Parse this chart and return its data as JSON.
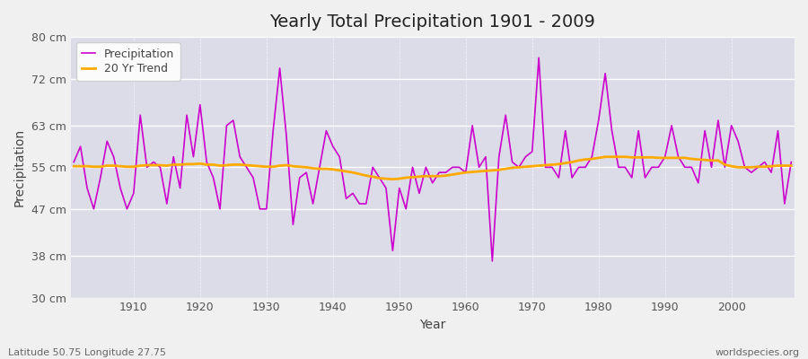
{
  "title": "Yearly Total Precipitation 1901 - 2009",
  "xlabel": "Year",
  "ylabel": "Precipitation",
  "bottom_left_label": "Latitude 50.75 Longitude 27.75",
  "bottom_right_label": "worldspecies.org",
  "ylim": [
    30,
    80
  ],
  "yticks": [
    30,
    38,
    47,
    55,
    63,
    72,
    80
  ],
  "ytick_labels": [
    "30 cm",
    "38 cm",
    "47 cm",
    "55 cm",
    "63 cm",
    "72 cm",
    "80 cm"
  ],
  "bg_color": "#f0f0f0",
  "plot_bg_color": "#dcdce8",
  "precip_color": "#cc00cc",
  "trend_color": "#ffaa00",
  "years": [
    1901,
    1902,
    1903,
    1904,
    1905,
    1906,
    1907,
    1908,
    1909,
    1910,
    1911,
    1912,
    1913,
    1914,
    1915,
    1916,
    1917,
    1918,
    1919,
    1920,
    1921,
    1922,
    1923,
    1924,
    1925,
    1926,
    1927,
    1928,
    1929,
    1930,
    1931,
    1932,
    1933,
    1934,
    1935,
    1936,
    1937,
    1938,
    1939,
    1940,
    1941,
    1942,
    1943,
    1944,
    1945,
    1946,
    1947,
    1948,
    1949,
    1950,
    1951,
    1952,
    1953,
    1954,
    1955,
    1956,
    1957,
    1958,
    1959,
    1960,
    1961,
    1962,
    1963,
    1964,
    1965,
    1966,
    1967,
    1968,
    1969,
    1970,
    1971,
    1972,
    1973,
    1974,
    1975,
    1976,
    1977,
    1978,
    1979,
    1980,
    1981,
    1982,
    1983,
    1984,
    1985,
    1986,
    1987,
    1988,
    1989,
    1990,
    1991,
    1992,
    1993,
    1994,
    1995,
    1996,
    1997,
    1998,
    1999,
    2000,
    2001,
    2002,
    2003,
    2004,
    2005,
    2006,
    2007,
    2008,
    2009
  ],
  "precip": [
    56,
    59,
    51,
    47,
    53,
    60,
    57,
    51,
    47,
    50,
    65,
    55,
    56,
    55,
    48,
    57,
    51,
    65,
    57,
    67,
    56,
    53,
    47,
    63,
    64,
    57,
    55,
    53,
    47,
    47,
    62,
    74,
    61,
    44,
    53,
    54,
    48,
    55,
    62,
    59,
    57,
    49,
    50,
    48,
    48,
    55,
    53,
    51,
    39,
    51,
    47,
    55,
    50,
    55,
    52,
    54,
    54,
    55,
    55,
    54,
    63,
    55,
    57,
    37,
    57,
    65,
    56,
    55,
    57,
    58,
    76,
    55,
    55,
    53,
    62,
    53,
    55,
    55,
    57,
    64,
    73,
    62,
    55,
    55,
    53,
    62,
    53,
    55,
    55,
    57,
    63,
    57,
    55,
    55,
    52,
    62,
    55,
    64,
    55,
    63,
    60,
    55,
    54,
    55,
    56,
    54,
    62,
    48,
    56
  ],
  "trend": [
    55.2,
    55.2,
    55.2,
    55.1,
    55.1,
    55.3,
    55.3,
    55.2,
    55.1,
    55.1,
    55.3,
    55.4,
    55.4,
    55.4,
    55.3,
    55.5,
    55.5,
    55.6,
    55.6,
    55.7,
    55.5,
    55.5,
    55.3,
    55.4,
    55.5,
    55.5,
    55.4,
    55.3,
    55.2,
    55.1,
    55.1,
    55.3,
    55.4,
    55.2,
    55.1,
    55.0,
    54.8,
    54.7,
    54.7,
    54.6,
    54.4,
    54.2,
    54.0,
    53.7,
    53.4,
    53.2,
    52.9,
    52.8,
    52.7,
    52.8,
    53.0,
    53.1,
    53.2,
    53.3,
    53.3,
    53.3,
    53.4,
    53.6,
    53.8,
    54.0,
    54.1,
    54.2,
    54.3,
    54.4,
    54.5,
    54.7,
    54.9,
    55.0,
    55.1,
    55.2,
    55.3,
    55.4,
    55.5,
    55.6,
    55.8,
    56.0,
    56.3,
    56.5,
    56.6,
    56.8,
    57.0,
    57.0,
    57.0,
    57.0,
    56.9,
    56.9,
    56.9,
    56.9,
    56.8,
    56.8,
    56.8,
    56.8,
    56.8,
    56.6,
    56.5,
    56.4,
    56.3,
    56.3,
    55.5,
    55.2,
    55.0,
    55.0,
    55.0,
    55.1,
    55.1,
    55.2,
    55.3,
    55.3,
    55.3
  ]
}
